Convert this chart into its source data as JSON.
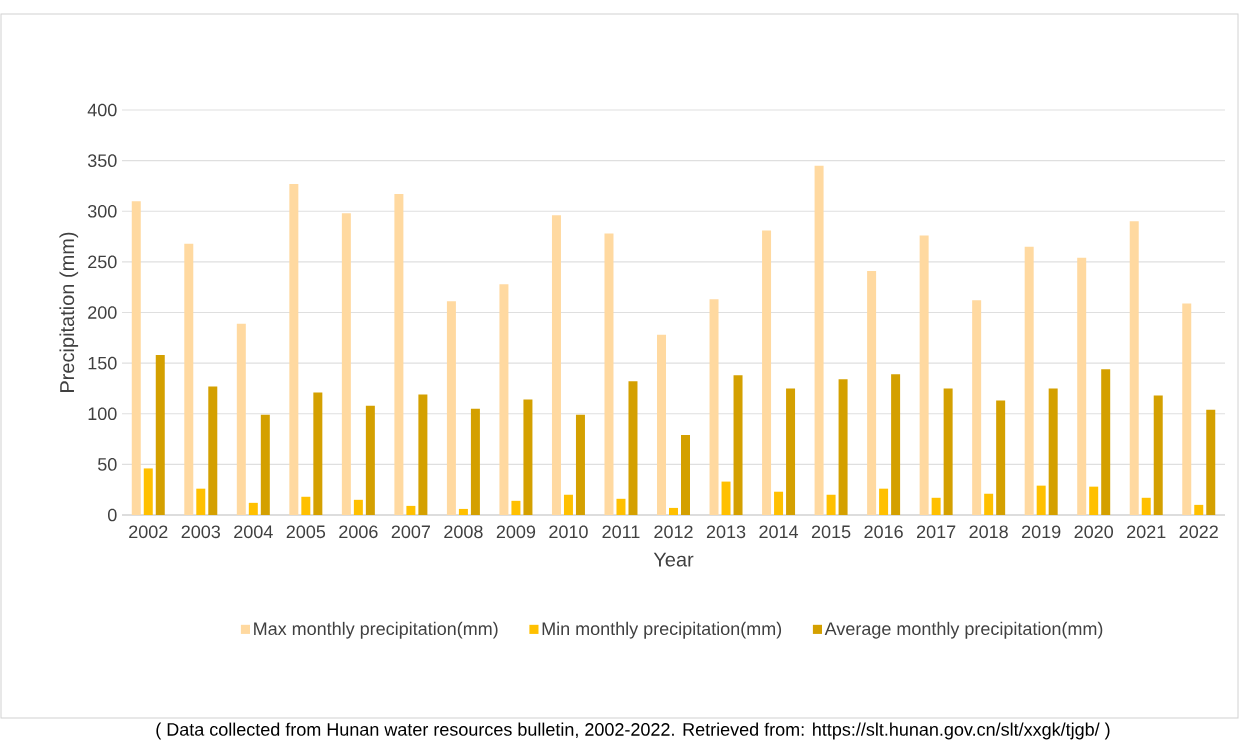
{
  "chart_data": {
    "type": "bar",
    "categories": [
      "2002",
      "2003",
      "2004",
      "2005",
      "2006",
      "2007",
      "2008",
      "2009",
      "2010",
      "2011",
      "2012",
      "2013",
      "2014",
      "2015",
      "2016",
      "2017",
      "2018",
      "2019",
      "2020",
      "2021",
      "2022"
    ],
    "series": [
      {
        "name": "Max monthly precipitation(mm)",
        "color": "#ffd9a0",
        "values": [
          310,
          268,
          189,
          327,
          298,
          317,
          211,
          228,
          296,
          278,
          178,
          213,
          281,
          345,
          241,
          276,
          212,
          265,
          254,
          290,
          209
        ]
      },
      {
        "name": "Min monthly precipitation(mm)",
        "color": "#ffc000",
        "values": [
          46,
          26,
          12,
          18,
          15,
          9,
          6,
          14,
          20,
          16,
          7,
          33,
          23,
          20,
          26,
          17,
          21,
          29,
          28,
          17,
          10
        ]
      },
      {
        "name": "Average monthly precipitation(mm)",
        "color": "#d4a000",
        "values": [
          158,
          127,
          99,
          121,
          108,
          119,
          105,
          114,
          99,
          132,
          79,
          138,
          125,
          134,
          139,
          125,
          113,
          125,
          144,
          118,
          104
        ]
      }
    ],
    "ylim": [
      0,
      400
    ],
    "yticks": [
      0,
      50,
      100,
      150,
      200,
      250,
      300,
      350,
      400
    ],
    "grid": "y",
    "legend": "bottom",
    "xlabel": "Year",
    "ylabel": "Precipitation (mm)",
    "annotations": [
      "( Data collected from Hunan water resources bulletin, 2002-2022. Retrieved from: https://slt.hunan.gov.cn/slt/xxgk/tjgb/ )"
    ]
  }
}
